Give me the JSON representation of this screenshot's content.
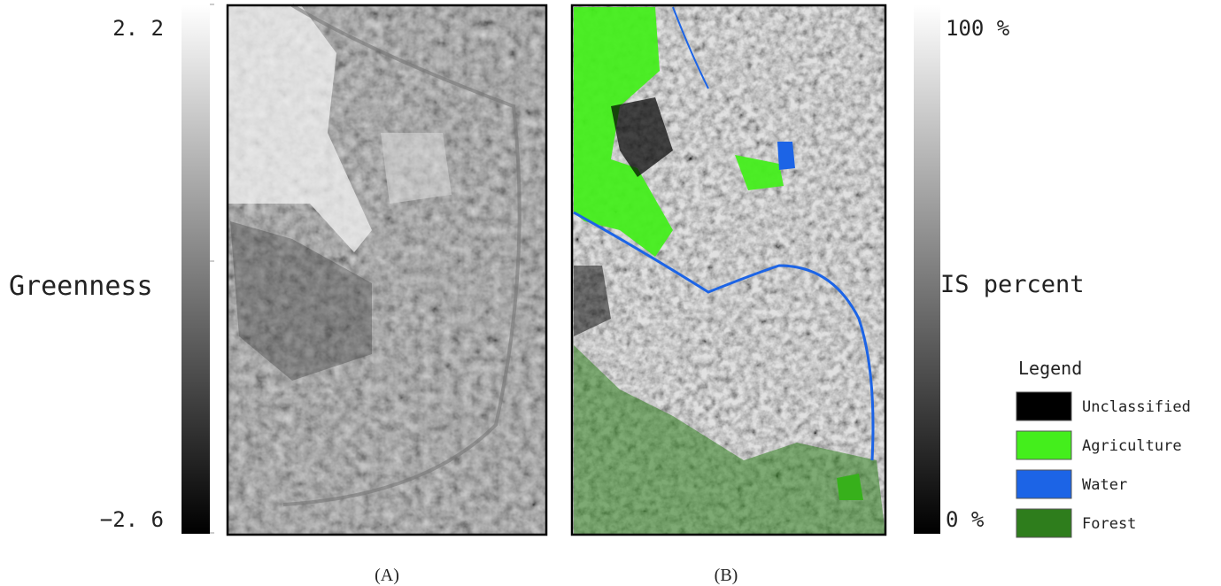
{
  "left_colorbar": {
    "max_label": "2. 2",
    "min_label": "−2. 6",
    "title": "Greenness"
  },
  "right_colorbar": {
    "max_label": "100 %",
    "min_label": "0 %",
    "title": "IS percent"
  },
  "panels": [
    {
      "caption": "(A)"
    },
    {
      "caption": "(B)"
    }
  ],
  "legend": {
    "title": "Legend",
    "items": [
      {
        "label": "Unclassified",
        "color": "#000000"
      },
      {
        "label": "Agriculture",
        "color": "#44ee1c"
      },
      {
        "label": "Water",
        "color": "#1c64e6"
      },
      {
        "label": "Forest",
        "color": "#2e7d1c"
      }
    ]
  }
}
